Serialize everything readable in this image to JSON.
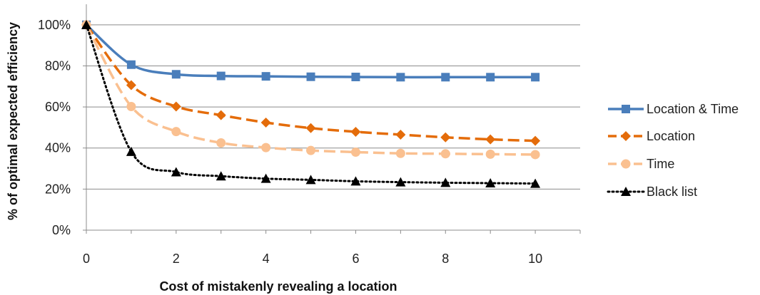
{
  "chart_data": {
    "type": "line",
    "title": "",
    "xlabel": "Cost of mistakenly revealing a location",
    "ylabel": "% of optimal expected efficiency",
    "xlim": [
      0,
      11
    ],
    "ylim": [
      0,
      1.1
    ],
    "x_ticks": [
      0,
      2,
      4,
      6,
      8,
      10
    ],
    "x_tick_labels": [
      "0",
      "2",
      "4",
      "6",
      "8",
      "10"
    ],
    "y_ticks": [
      0,
      0.2,
      0.4,
      0.6,
      0.8,
      1.0
    ],
    "y_tick_labels": [
      "0%",
      "20%",
      "40%",
      "60%",
      "80%",
      "100%"
    ],
    "grid": "horizontal",
    "legend_position": "right",
    "x": [
      0,
      1,
      2,
      3,
      4,
      5,
      6,
      7,
      8,
      9,
      10
    ],
    "series": [
      {
        "name": "Location & Time",
        "color": "#4A7EBB",
        "dash": "solid",
        "marker": "square",
        "values": [
          1.0,
          0.806,
          0.759,
          0.751,
          0.749,
          0.747,
          0.746,
          0.745,
          0.745,
          0.745,
          0.745
        ]
      },
      {
        "name": "Location",
        "color": "#E46C0A",
        "dash": "dashed",
        "marker": "diamond",
        "values": [
          1.0,
          0.706,
          0.602,
          0.56,
          0.524,
          0.497,
          0.479,
          0.465,
          0.452,
          0.442,
          0.435
        ]
      },
      {
        "name": "Time",
        "color": "#FAC090",
        "dash": "dashed",
        "marker": "circle",
        "values": [
          1.0,
          0.602,
          0.48,
          0.425,
          0.402,
          0.388,
          0.38,
          0.374,
          0.372,
          0.37,
          0.368
        ]
      },
      {
        "name": "Black list",
        "color": "#000000",
        "dash": "dotted",
        "marker": "triangle",
        "values": [
          1.0,
          0.382,
          0.283,
          0.263,
          0.251,
          0.245,
          0.238,
          0.234,
          0.231,
          0.229,
          0.227
        ]
      }
    ]
  }
}
